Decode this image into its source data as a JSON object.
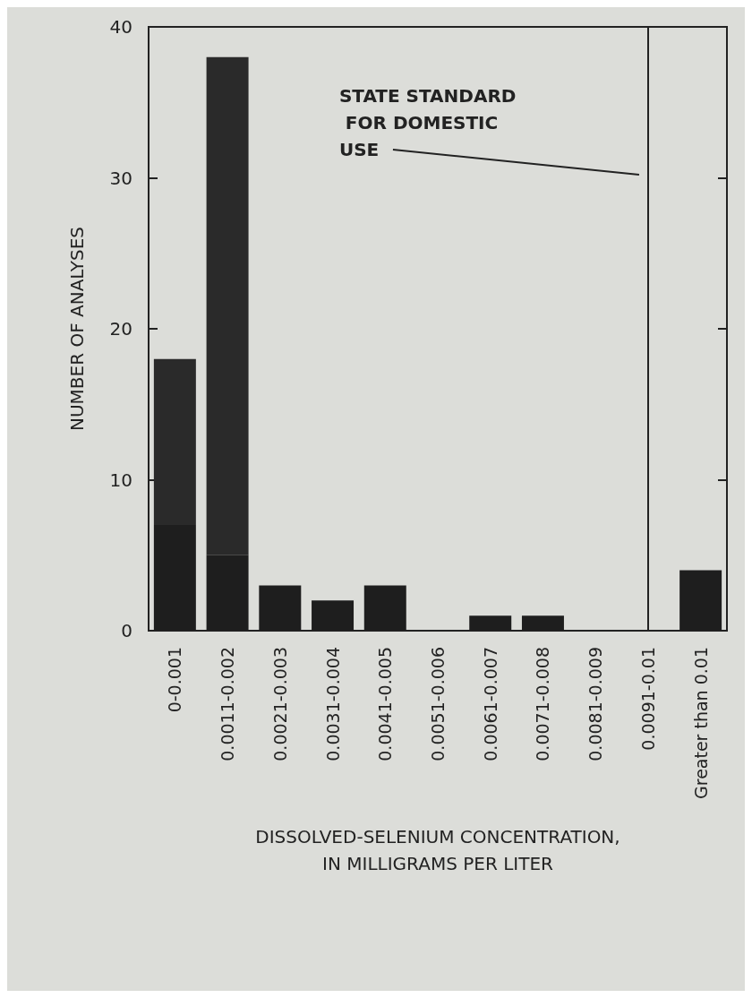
{
  "chart_data": {
    "type": "bar",
    "stacked": true,
    "xlabel": "DISSOLVED-SELENIUM CONCENTRATION,\nIN MILLIGRAMS PER LITER",
    "ylabel": "NUMBER OF ANALYSES",
    "categories": [
      "0-0.001",
      "0.0011-0.002",
      "0.0021-0.003",
      "0.0031-0.004",
      "0.0041-0.005",
      "0.0051-0.006",
      "0.0061-0.007",
      "0.0071-0.008",
      "0.0081-0.009",
      "0.0091-0.01",
      "Greater than 0.01"
    ],
    "series": [
      {
        "color": "#1e1e1e",
        "values": [
          7,
          5,
          3,
          2,
          3,
          0,
          1,
          1,
          0,
          0,
          4
        ]
      },
      {
        "color": "#2a2a2a",
        "values": [
          11,
          33,
          null,
          null,
          null,
          null,
          null,
          null,
          null,
          null,
          null
        ]
      }
    ],
    "ylim": [
      0,
      40
    ],
    "yticks": [
      0,
      10,
      20,
      30,
      40
    ],
    "grid": false,
    "ref_lines": [
      {
        "axis": "x",
        "value": "0.0091-0.01",
        "label": "STATE STANDARD\n FOR DOMESTIC\nUSE",
        "color": "#222222"
      }
    ]
  }
}
